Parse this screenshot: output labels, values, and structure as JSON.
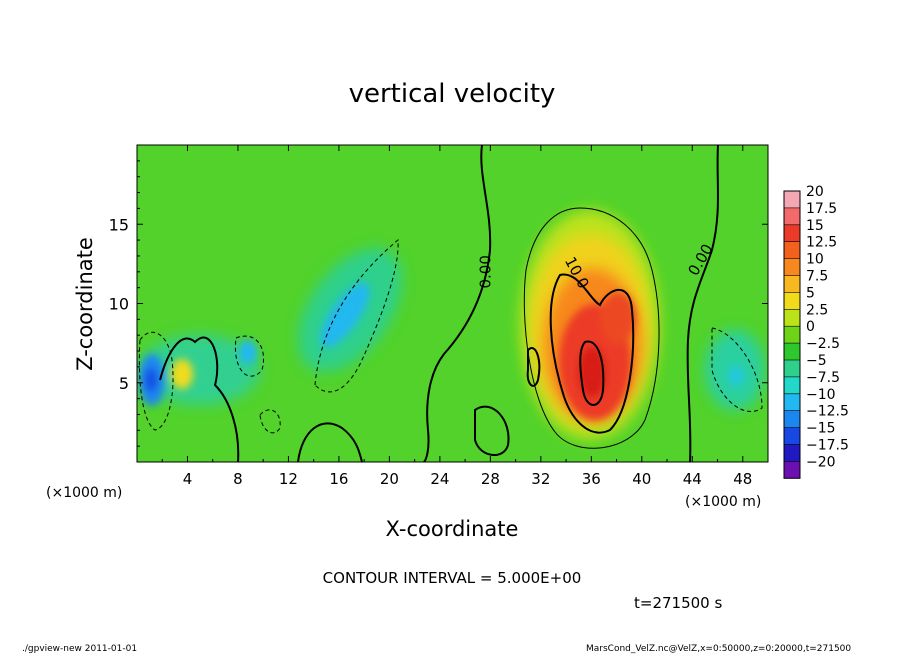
{
  "chart_data": {
    "type": "heatmap",
    "title": "vertical velocity",
    "xlabel": "X-coordinate",
    "ylabel": "Z-coordinate",
    "x_unit_left": "(×1000 m)",
    "x_unit_right": "(×1000 m)",
    "xlim": [
      0,
      50
    ],
    "ylim": [
      0,
      20
    ],
    "x_ticks": [
      4,
      8,
      12,
      16,
      20,
      24,
      28,
      32,
      36,
      40,
      44,
      48
    ],
    "x_tick_labels": [
      "4",
      "8",
      "12",
      "16",
      "20",
      "24",
      "28",
      "32",
      "36",
      "40",
      "44",
      "48"
    ],
    "y_ticks": [
      5,
      10,
      15
    ],
    "y_tick_labels": [
      "5",
      "10",
      "15"
    ],
    "contour_interval_text": "CONTOUR INTERVAL = 5.000E+00",
    "time_text": "t=271500 s",
    "footer_left": "./gpview-new  2011-01-01",
    "footer_right": "MarsCond_VelZ.nc@VelZ,x=0:50000,z=0:20000,t=271500",
    "contour_labels": [
      {
        "text": "0.00",
        "x": 28,
        "z": 12
      },
      {
        "text": "10.0",
        "x": 34.5,
        "z": 11.8
      },
      {
        "text": "0.00",
        "x": 45,
        "z": 12.6
      }
    ],
    "features": [
      {
        "kind": "updraft",
        "x": 36.3,
        "z": 7.0,
        "peak": 17.5
      },
      {
        "kind": "updraft",
        "x": 38.5,
        "z": 9.0,
        "peak": 15
      },
      {
        "kind": "updraft",
        "x": 3.6,
        "z": 5.5,
        "peak": 7.5
      },
      {
        "kind": "downdraft",
        "x": 1.3,
        "z": 5.2,
        "peak": -15
      },
      {
        "kind": "downdraft",
        "x": 16.0,
        "z": 8.8,
        "peak": -8
      },
      {
        "kind": "downdraft",
        "x": 8.8,
        "z": 7.0,
        "peak": -9
      },
      {
        "kind": "downdraft",
        "x": 47.5,
        "z": 5.5,
        "peak": -6
      }
    ],
    "colorbar": {
      "levels": [
        "20",
        "17.5",
        "15",
        "12.5",
        "10",
        "7.5",
        "5",
        "2.5",
        "0",
        "−2.5",
        "−5",
        "−7.5",
        "−10",
        "−12.5",
        "−15",
        "−17.5",
        "−20"
      ],
      "colors": [
        "#f4a8b4",
        "#f26a6a",
        "#ec3a28",
        "#f0621e",
        "#f7881e",
        "#f8b820",
        "#f0dc1a",
        "#bce21a",
        "#6ed41a",
        "#2ec82e",
        "#2ed08c",
        "#22d8c8",
        "#22b8f0",
        "#1c86f0",
        "#1848e4",
        "#2018c0",
        "#6a10b0"
      ]
    }
  }
}
